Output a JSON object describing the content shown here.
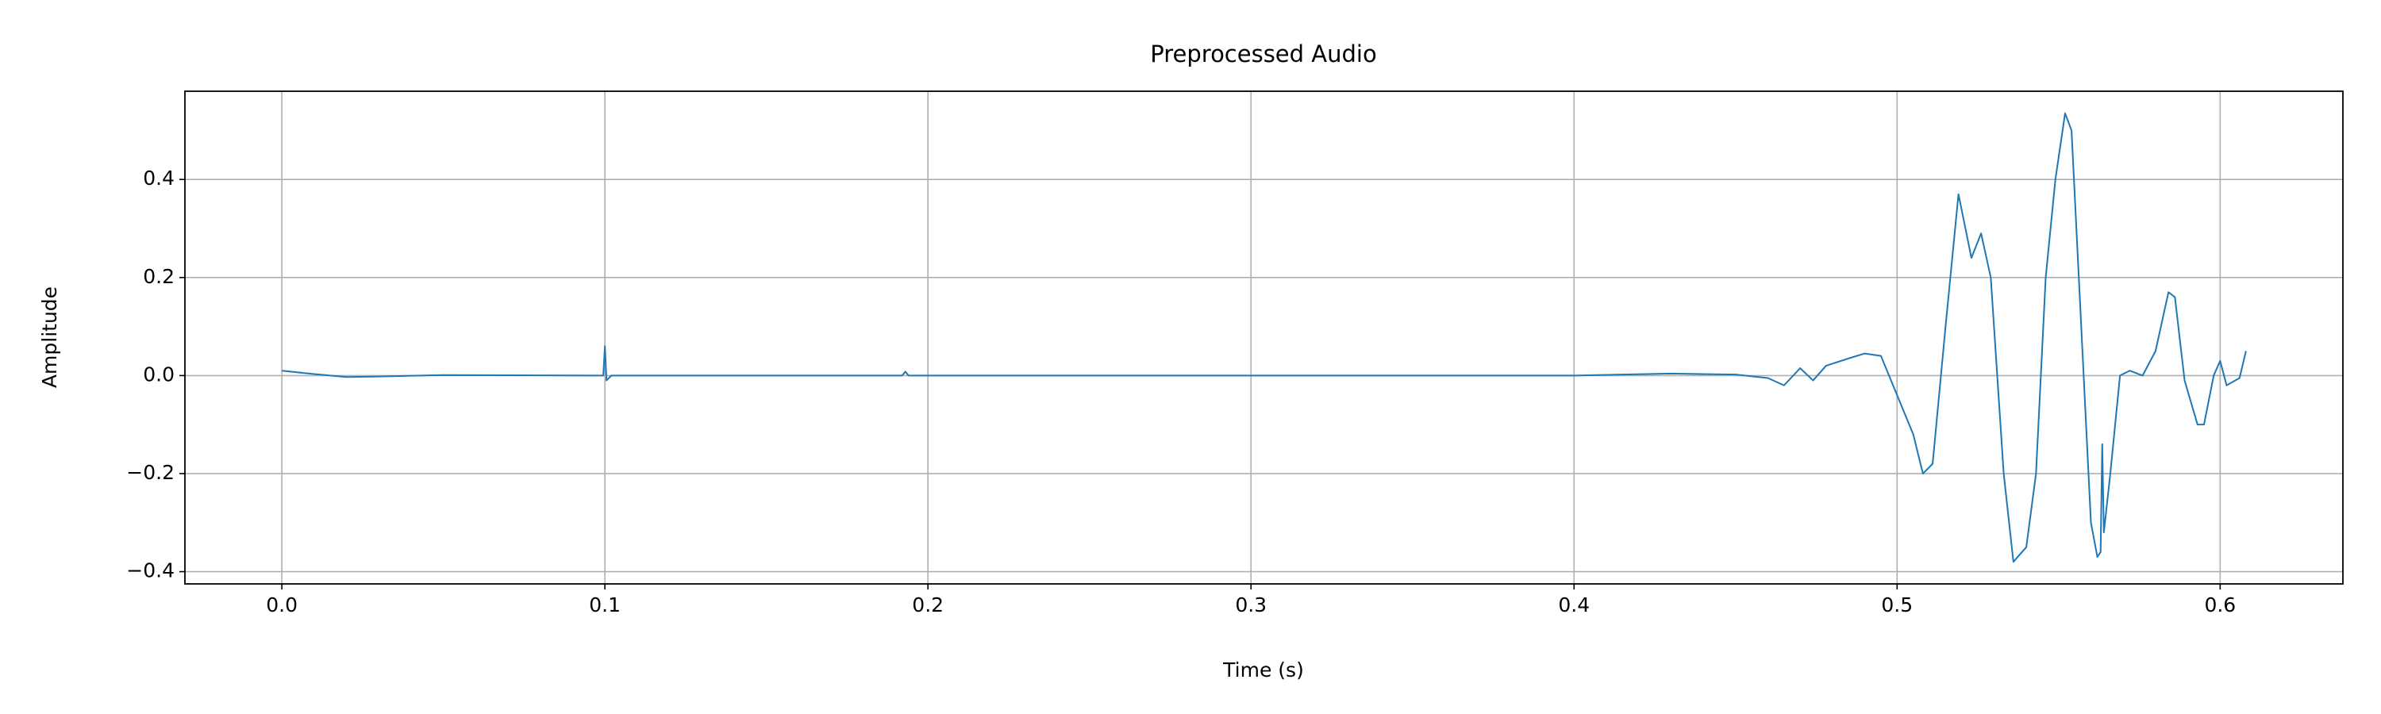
{
  "chart_data": {
    "type": "line",
    "title": "Preprocessed Audio",
    "xlabel": "Time (s)",
    "ylabel": "Amplitude",
    "x": [
      0,
      0.01,
      0.02,
      0.03,
      0.05,
      0.0995,
      0.1,
      0.1005,
      0.102,
      0.15,
      0.192,
      0.193,
      0.194,
      0.25,
      0.3,
      0.35,
      0.4,
      0.43,
      0.45,
      0.46,
      0.465,
      0.47,
      0.474,
      0.478,
      0.485,
      0.49,
      0.495,
      0.5,
      0.505,
      0.508,
      0.511,
      0.515,
      0.519,
      0.523,
      0.526,
      0.529,
      0.533,
      0.536,
      0.54,
      0.543,
      0.546,
      0.549,
      0.552,
      0.554,
      0.557,
      0.56,
      0.562,
      0.563,
      0.5635,
      0.564,
      0.566,
      0.569,
      0.572,
      0.576,
      0.58,
      0.584,
      0.586,
      0.589,
      0.593,
      0.595,
      0.598,
      0.6,
      0.602,
      0.606,
      0.608
    ],
    "values": [
      0.01,
      0.003,
      -0.003,
      -0.002,
      0.001,
      0,
      0.06,
      -0.01,
      0,
      0,
      0,
      0.008,
      0,
      0,
      0,
      0,
      0,
      0.004,
      0.002,
      -0.005,
      -0.02,
      0.015,
      -0.01,
      0.02,
      0.035,
      0.045,
      0.04,
      -0.04,
      -0.12,
      -0.2,
      -0.18,
      0.1,
      0.37,
      0.24,
      0.29,
      0.2,
      -0.2,
      -0.38,
      -0.35,
      -0.2,
      0.2,
      0.4,
      0.535,
      0.5,
      0.1,
      -0.3,
      -0.37,
      -0.36,
      -0.14,
      -0.32,
      -0.2,
      0,
      0.01,
      0,
      0.05,
      0.17,
      0.16,
      -0.01,
      -0.1,
      -0.1,
      0,
      0.03,
      -0.02,
      -0.005,
      0.05
    ],
    "color": "#1f77b4",
    "xlim": [
      -0.03,
      0.638
    ],
    "ylim": [
      -0.425,
      0.58
    ],
    "xticks": [
      {
        "value": 0,
        "label": "0.0"
      },
      0.1,
      0.2,
      0.3,
      0.4,
      0.5,
      0.6
    ],
    "yticks": [
      {
        "value": -0.4,
        "label": "−0.4"
      },
      {
        "value": -0.2,
        "label": "−0.2"
      },
      {
        "value": 0,
        "label": "0.0"
      },
      0.2,
      0.4
    ],
    "grid": true
  }
}
